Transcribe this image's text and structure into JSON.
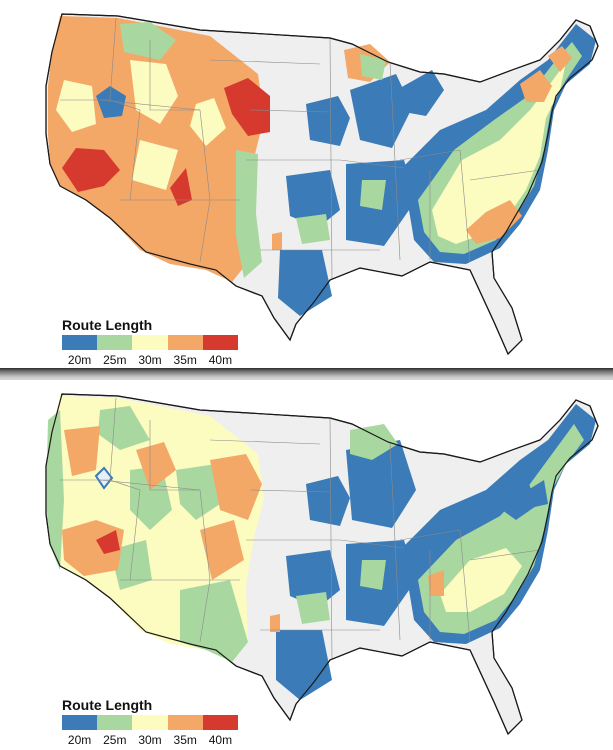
{
  "legend": {
    "title": "Route Length",
    "bins": [
      {
        "label": "20m",
        "color": "#3a7bb8"
      },
      {
        "label": "25m",
        "color": "#a8d8a0"
      },
      {
        "label": "30m",
        "color": "#fcfbc0"
      },
      {
        "label": "35m",
        "color": "#f3a868"
      },
      {
        "label": "40m",
        "color": "#d63a2e"
      }
    ]
  },
  "maps": [
    {
      "id": "top",
      "legend_title": "Route Length",
      "labels": [
        "20m",
        "25m",
        "30m",
        "35m",
        "40m"
      ]
    },
    {
      "id": "bottom",
      "legend_title": "Route Length",
      "labels": [
        "20m",
        "25m",
        "30m",
        "35m",
        "40m"
      ]
    }
  ]
}
